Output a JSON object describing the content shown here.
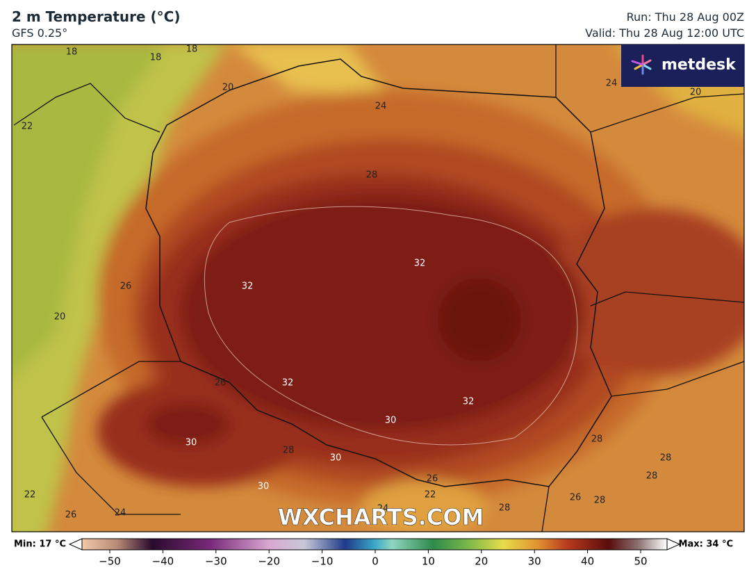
{
  "header": {
    "title": "2 m Temperature (°C)",
    "subtitle": "GFS 0.25°",
    "run": "Run: Thu 28 Aug 00Z",
    "valid": "Valid: Thu 28 Aug 12:00 UTC"
  },
  "logo": "metdesk",
  "watermark": "WXCHARTS.COM",
  "contour_labels": [
    18,
    18,
    18,
    20,
    22,
    24,
    24,
    20,
    28,
    26,
    20,
    32,
    32,
    32,
    32,
    30,
    26,
    30,
    28,
    30,
    30,
    26,
    22,
    24,
    28,
    26,
    28,
    28,
    28,
    28,
    22,
    26,
    24
  ],
  "colorbar": {
    "min_label": "Min: 17 °C",
    "max_label": "Max: 34 °C",
    "ticks": [
      {
        "value": -50,
        "label": "−50"
      },
      {
        "value": -40,
        "label": "−40"
      },
      {
        "value": -30,
        "label": "−30"
      },
      {
        "value": -20,
        "label": "−20"
      },
      {
        "value": -10,
        "label": "−10"
      },
      0,
      10,
      20,
      30,
      40,
      50
    ]
  }
}
